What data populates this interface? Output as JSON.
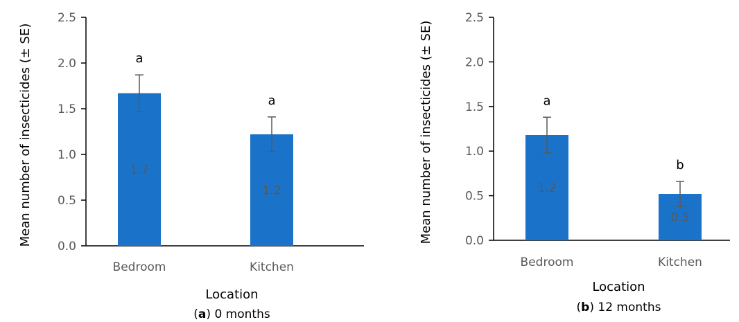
{
  "chart_data": [
    {
      "type": "bar",
      "panel_letter": "a",
      "caption_text": ") 0 months",
      "xlabel": "Location",
      "ylabel": "Mean number of insecticides (± SE)",
      "categories": [
        "Bedroom",
        "Kitchen"
      ],
      "values": [
        1.67,
        1.22
      ],
      "errors": [
        0.2,
        0.19
      ],
      "data_labels": [
        "1.7",
        "1.2"
      ],
      "significance": [
        "a",
        "a"
      ],
      "ylim": [
        0,
        2.5
      ],
      "yticks": [
        "0.0",
        "0.5",
        "1.0",
        "1.5",
        "2.0",
        "2.5"
      ],
      "grid": false,
      "bar_color": "#1a72c9"
    },
    {
      "type": "bar",
      "panel_letter": "b",
      "caption_text": ") 12 months",
      "xlabel": "Location",
      "ylabel": "Mean number of insecticides (± SE)",
      "categories": [
        "Bedroom",
        "Kitchen"
      ],
      "values": [
        1.18,
        0.52
      ],
      "errors": [
        0.2,
        0.14
      ],
      "data_labels": [
        "1.2",
        "0.5"
      ],
      "significance": [
        "a",
        "b"
      ],
      "ylim": [
        0,
        2.5
      ],
      "yticks": [
        "0.0",
        "0.5",
        "1.0",
        "1.5",
        "2.0",
        "2.5"
      ],
      "grid": false,
      "bar_color": "#1a72c9"
    }
  ]
}
